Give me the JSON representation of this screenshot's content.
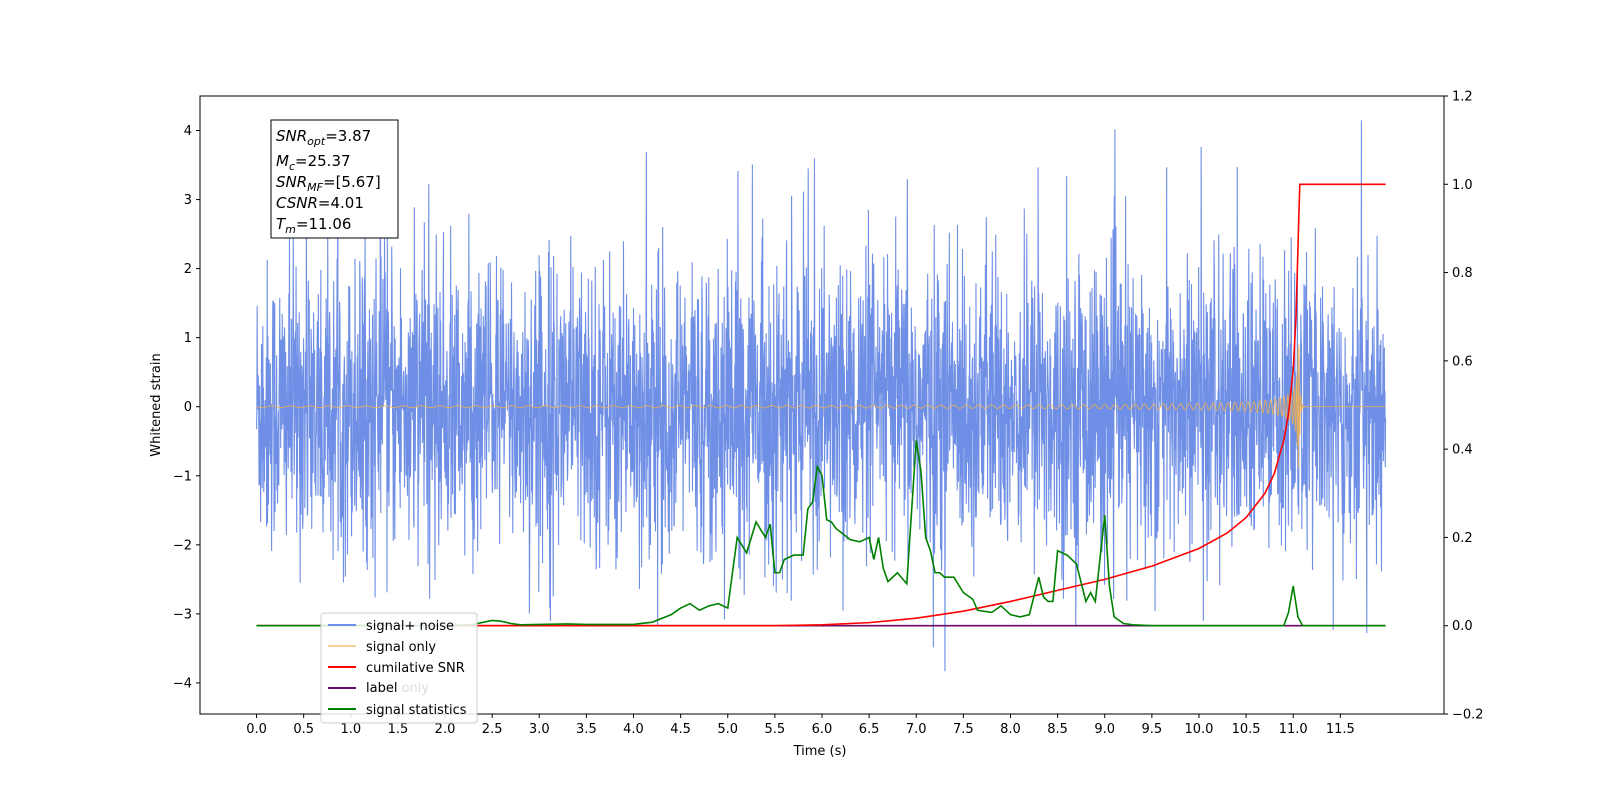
{
  "chart_data": {
    "type": "line",
    "xlabel": "Time (s)",
    "ylabel": "Whitened strain",
    "xlim": [
      -0.6,
      12.6
    ],
    "ylim": [
      -4.45,
      4.5
    ],
    "y2lim": [
      -0.2,
      1.2
    ],
    "x_ticks": [
      "0.0",
      "0.5",
      "1.0",
      "1.5",
      "2.0",
      "2.5",
      "3.0",
      "3.5",
      "4.0",
      "4.5",
      "5.0",
      "5.5",
      "6.0",
      "6.5",
      "7.0",
      "7.5",
      "8.0",
      "8.5",
      "9.0",
      "9.5",
      "10.0",
      "10.5",
      "11.0",
      "11.5"
    ],
    "y_ticks": [
      "4",
      "3",
      "2",
      "1",
      "0",
      "−1",
      "−2",
      "−3",
      "−4"
    ],
    "y2_ticks": [
      "1.2",
      "1.0",
      "0.8",
      "0.6",
      "0.4",
      "0.2",
      "0.0",
      "−0.2"
    ],
    "annotation": {
      "snr_opt": {
        "sym": "SNR",
        "sub": "opt",
        "val": "=3.87"
      },
      "mc": {
        "sym": "M",
        "sub": "c",
        "val": "=25.37"
      },
      "snr_mf": {
        "sym": "SNR",
        "sub": "MF",
        "val": "=[5.67]"
      },
      "csnr": {
        "sym": "CSNR",
        "val": "=4.01"
      },
      "tm": {
        "sym": "T",
        "sub": "m",
        "val": "=11.06"
      }
    },
    "series": [
      {
        "name": "signal+ noise",
        "color": "#6f8fe6",
        "axis": "left",
        "kind": "noise",
        "x_range": [
          0,
          11.98
        ],
        "amplitude_range": [
          -4.05,
          4.15
        ]
      },
      {
        "name": "signal only",
        "color": "#f5b24a",
        "axis": "left",
        "kind": "chirp",
        "x_range": [
          0,
          11.98
        ],
        "merger_time": 11.06,
        "peak_amplitude": 0.95
      },
      {
        "name": "cumilative SNR",
        "color": "#ff0000",
        "axis": "right",
        "x": [
          0,
          5.5,
          6.0,
          6.5,
          7.0,
          7.5,
          8.0,
          8.5,
          9.0,
          9.5,
          10.0,
          10.3,
          10.5,
          10.7,
          10.8,
          10.9,
          10.95,
          11.0,
          11.03,
          11.06,
          11.07,
          11.98
        ],
        "values": [
          0.0,
          0.0,
          0.002,
          0.007,
          0.017,
          0.033,
          0.055,
          0.08,
          0.105,
          0.135,
          0.175,
          0.21,
          0.245,
          0.3,
          0.345,
          0.42,
          0.48,
          0.58,
          0.7,
          0.93,
          1.0,
          1.0
        ]
      },
      {
        "name": "label",
        "color": "#6a0a6a",
        "axis": "right",
        "x": [
          0,
          11.98
        ],
        "values": [
          0.0,
          0.0
        ]
      },
      {
        "name": "label only",
        "color": "#dddddd",
        "axis": "right",
        "x": [],
        "values": []
      },
      {
        "name": "signal statistics",
        "color": "#008000",
        "axis": "right",
        "x": [
          0,
          0.5,
          1.0,
          1.5,
          2.0,
          2.3,
          2.5,
          2.6,
          2.7,
          2.8,
          3.0,
          3.3,
          3.5,
          4.0,
          4.2,
          4.4,
          4.5,
          4.6,
          4.7,
          4.8,
          4.9,
          5.0,
          5.1,
          5.2,
          5.3,
          5.4,
          5.45,
          5.5,
          5.55,
          5.6,
          5.7,
          5.8,
          5.85,
          5.9,
          5.95,
          6.0,
          6.05,
          6.1,
          6.15,
          6.3,
          6.4,
          6.5,
          6.55,
          6.6,
          6.65,
          6.7,
          6.8,
          6.9,
          7.0,
          7.05,
          7.1,
          7.15,
          7.2,
          7.25,
          7.3,
          7.4,
          7.5,
          7.6,
          7.65,
          7.8,
          7.9,
          8.0,
          8.1,
          8.2,
          8.3,
          8.35,
          8.4,
          8.45,
          8.5,
          8.6,
          8.7,
          8.8,
          8.85,
          8.9,
          9.0,
          9.05,
          9.1,
          9.2,
          9.3,
          9.5,
          9.9,
          10.0,
          10.5,
          10.9,
          10.95,
          11.0,
          11.05,
          11.1,
          11.2,
          11.5,
          11.98
        ],
        "values": [
          0,
          0,
          0,
          0,
          0,
          0.003,
          0.012,
          0.01,
          0.005,
          0.002,
          0.003,
          0.004,
          0.003,
          0.003,
          0.008,
          0.025,
          0.04,
          0.05,
          0.035,
          0.045,
          0.05,
          0.04,
          0.2,
          0.165,
          0.235,
          0.2,
          0.23,
          0.12,
          0.12,
          0.15,
          0.16,
          0.16,
          0.265,
          0.28,
          0.36,
          0.34,
          0.24,
          0.235,
          0.22,
          0.195,
          0.19,
          0.2,
          0.15,
          0.2,
          0.13,
          0.1,
          0.12,
          0.095,
          0.42,
          0.35,
          0.2,
          0.17,
          0.12,
          0.12,
          0.11,
          0.11,
          0.075,
          0.06,
          0.035,
          0.03,
          0.045,
          0.025,
          0.02,
          0.025,
          0.11,
          0.065,
          0.055,
          0.055,
          0.17,
          0.16,
          0.14,
          0.055,
          0.075,
          0.055,
          0.25,
          0.09,
          0.02,
          0.005,
          0.002,
          0,
          0,
          0,
          0,
          0,
          0.03,
          0.09,
          0.02,
          0,
          0,
          0,
          0
        ]
      }
    ],
    "legend_placement": "lower-left",
    "grid": false
  }
}
